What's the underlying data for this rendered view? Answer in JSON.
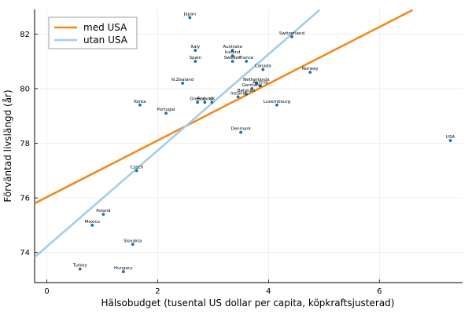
{
  "chart_data": {
    "type": "scatter",
    "xlabel": "Hälsobudget (tusental US dollar per capita, köpkraftsjusterad)",
    "ylabel": "Förväntad livslängd (år)",
    "xlim": [
      -0.22,
      7.5
    ],
    "ylim": [
      72.9,
      82.9
    ],
    "xticks": [
      0,
      2,
      4,
      6
    ],
    "yticks": [
      74,
      76,
      78,
      80,
      82
    ],
    "grid": true,
    "legend_position": "top-left",
    "point_color": "#1f6fa8",
    "points": [
      {
        "label": "Japan",
        "x": 2.58,
        "y": 82.6
      },
      {
        "label": "Switzerland",
        "x": 4.42,
        "y": 81.9
      },
      {
        "label": "Italy",
        "x": 2.68,
        "y": 81.4
      },
      {
        "label": "Australia",
        "x": 3.35,
        "y": 81.4
      },
      {
        "label": "Iceland",
        "x": 3.35,
        "y": 81.2
      },
      {
        "label": "Spain",
        "x": 2.68,
        "y": 81.0
      },
      {
        "label": "Sweden",
        "x": 3.35,
        "y": 81.0
      },
      {
        "label": "France",
        "x": 3.6,
        "y": 81.0
      },
      {
        "label": "Canada",
        "x": 3.9,
        "y": 80.7
      },
      {
        "label": "Norway",
        "x": 4.75,
        "y": 80.6
      },
      {
        "label": "N.Zealand",
        "x": 2.45,
        "y": 80.2
      },
      {
        "label": "Netherlands",
        "x": 3.78,
        "y": 80.2
      },
      {
        "label": "Austria",
        "x": 3.85,
        "y": 80.1
      },
      {
        "label": "Germany",
        "x": 3.7,
        "y": 80.0
      },
      {
        "label": "Belgium",
        "x": 3.6,
        "y": 79.8
      },
      {
        "label": "Ireland",
        "x": 3.45,
        "y": 79.7
      },
      {
        "label": "Greece",
        "x": 2.72,
        "y": 79.5
      },
      {
        "label": "Finland",
        "x": 2.85,
        "y": 79.5
      },
      {
        "label": "UK",
        "x": 2.98,
        "y": 79.5
      },
      {
        "label": "Korea",
        "x": 1.68,
        "y": 79.4
      },
      {
        "label": "Luxembourg",
        "x": 4.15,
        "y": 79.4
      },
      {
        "label": "Portugal",
        "x": 2.15,
        "y": 79.1
      },
      {
        "label": "Denmark",
        "x": 3.5,
        "y": 78.4
      },
      {
        "label": "USA",
        "x": 7.28,
        "y": 78.1
      },
      {
        "label": "Czech",
        "x": 1.62,
        "y": 77.0
      },
      {
        "label": "Poland",
        "x": 1.02,
        "y": 75.4
      },
      {
        "label": "Mexico",
        "x": 0.82,
        "y": 75.0
      },
      {
        "label": "Slovakia",
        "x": 1.55,
        "y": 74.3
      },
      {
        "label": "Turkey",
        "x": 0.6,
        "y": 73.4
      },
      {
        "label": "Hungary",
        "x": 1.38,
        "y": 73.3
      }
    ],
    "series": [
      {
        "name": "med USA",
        "color": "#f28a1c",
        "x": [
          -0.22,
          6.6
        ],
        "y": [
          75.8,
          82.88
        ]
      },
      {
        "name": "utan USA",
        "color": "#a6cde6",
        "x": [
          -0.22,
          4.92
        ],
        "y": [
          73.83,
          82.88
        ]
      }
    ]
  }
}
